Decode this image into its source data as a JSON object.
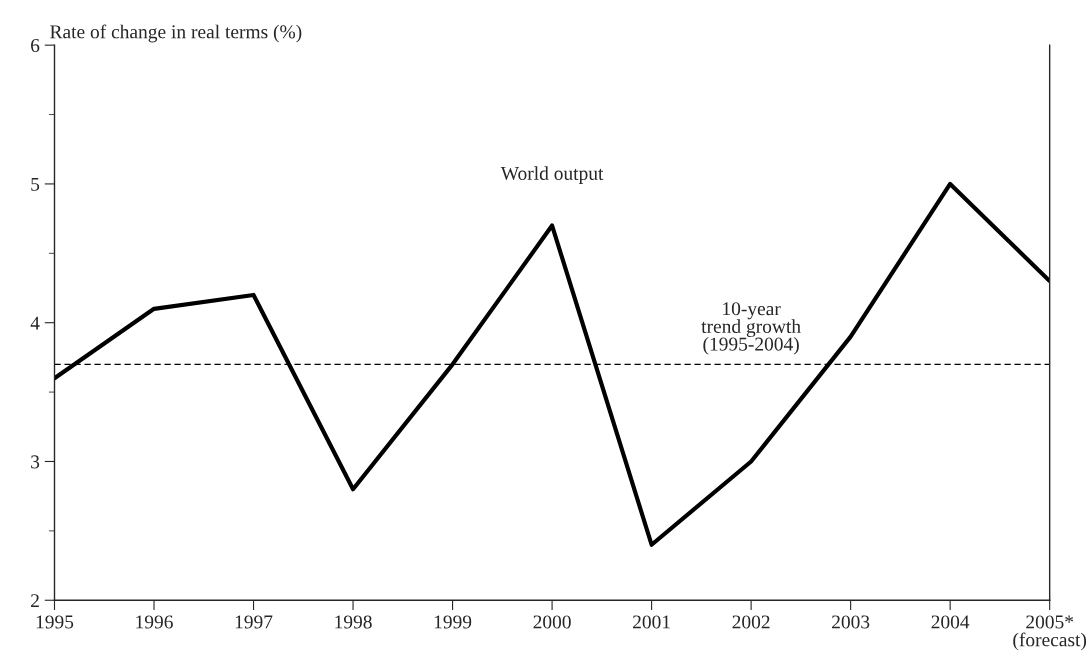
{
  "chart_data": {
    "type": "line",
    "ylabel": "Rate of change in real terms (%)",
    "categories": [
      "1995",
      "1996",
      "1997",
      "1998",
      "1999",
      "2000",
      "2001",
      "2002",
      "2003",
      "2004",
      "2005*\n(forecast)"
    ],
    "series": [
      {
        "name": "World output",
        "color": "#000000",
        "values": [
          3.6,
          4.1,
          4.2,
          2.8,
          3.7,
          4.7,
          2.4,
          3.0,
          3.9,
          5.0,
          4.3
        ]
      }
    ],
    "ylim": [
      2,
      6
    ],
    "yticks": [
      2,
      3,
      4,
      5,
      6
    ],
    "ref_lines": [
      {
        "axis": "y",
        "value": 3.7,
        "label": "10-year\ntrend growth\n(1995-2004)",
        "color": "#000000",
        "line_style": "dashed"
      }
    ],
    "grid": false,
    "legend": false,
    "marker": "none",
    "line_style": "solid"
  }
}
